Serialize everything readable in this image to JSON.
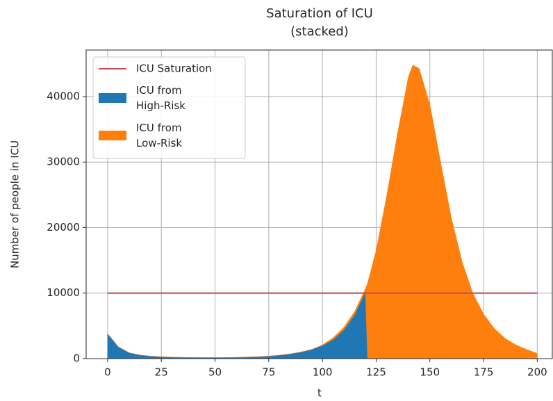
{
  "chart_data": {
    "type": "stacked_area",
    "title": [
      "Saturation of ICU",
      "(stacked)"
    ],
    "xlabel": "t",
    "ylabel": "Number of people in ICU",
    "x": [
      0,
      5,
      10,
      15,
      20,
      25,
      30,
      35,
      40,
      45,
      50,
      55,
      60,
      65,
      70,
      75,
      80,
      85,
      90,
      95,
      100,
      105,
      110,
      115,
      120,
      121,
      125,
      130,
      135,
      140,
      142,
      145,
      150,
      155,
      160,
      165,
      170,
      175,
      180,
      185,
      190,
      195,
      200
    ],
    "series": [
      {
        "name": "ICU from\nHigh-Risk",
        "color": "#1f77b4",
        "values": [
          3800,
          1800,
          900,
          550,
          380,
          280,
          220,
          190,
          170,
          160,
          160,
          170,
          190,
          230,
          290,
          380,
          520,
          720,
          1000,
          1400,
          2000,
          2900,
          4400,
          6700,
          10200,
          0,
          0,
          0,
          0,
          0,
          0,
          0,
          0,
          0,
          0,
          0,
          0,
          0,
          0,
          0,
          0,
          0,
          0
        ]
      },
      {
        "name": "ICU from\nLow-Risk",
        "color": "#ff7f0e",
        "values": [
          0,
          0,
          0,
          0,
          0,
          0,
          0,
          0,
          0,
          0,
          0,
          0,
          0,
          0,
          0,
          0,
          0,
          0,
          0,
          0,
          100,
          300,
          400,
          500,
          500,
          11500,
          16500,
          25000,
          34500,
          43000,
          44800,
          44300,
          38800,
          30000,
          21500,
          14800,
          10000,
          6800,
          4600,
          3100,
          2100,
          1400,
          800
        ]
      }
    ],
    "saturation": {
      "name": "ICU Saturation",
      "color": "#c44e52",
      "x": [
        0,
        200
      ],
      "values": [
        10000,
        10000
      ]
    },
    "xlim": [
      -10,
      207
    ],
    "ylim": [
      0,
      47100
    ],
    "xticks": [
      0,
      25,
      50,
      75,
      100,
      125,
      150,
      175,
      200
    ],
    "yticks": [
      0,
      10000,
      20000,
      30000,
      40000
    ],
    "grid": true,
    "legend": "upper left"
  }
}
